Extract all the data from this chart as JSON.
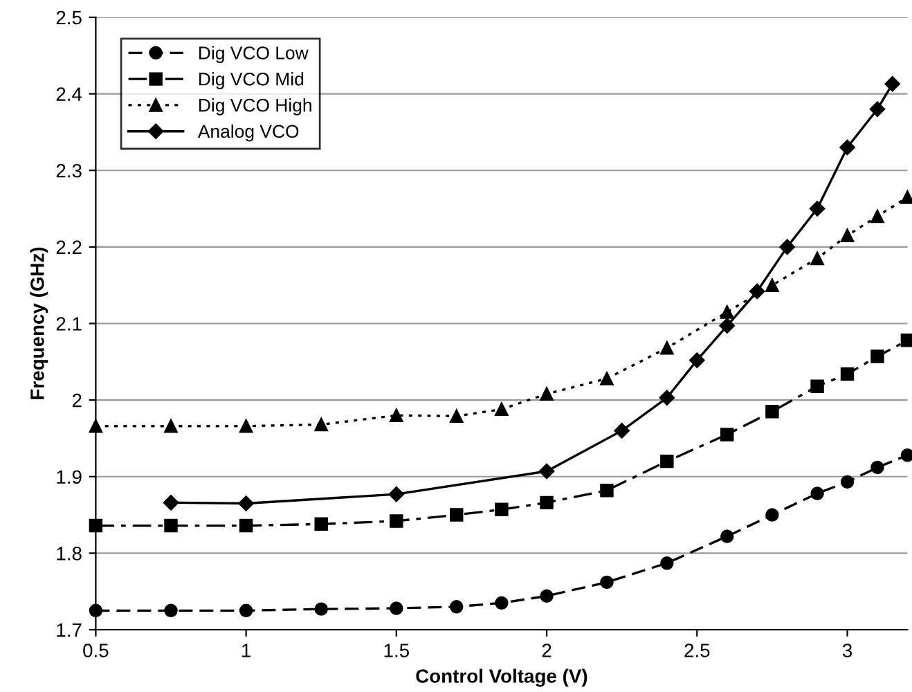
{
  "chart_data": {
    "type": "line",
    "xlabel": "Control Voltage (V)",
    "ylabel": "Frequency (GHz)",
    "xlim": [
      0.5,
      3.2
    ],
    "xticks": [
      0.5,
      1,
      1.5,
      2,
      2.5,
      3
    ],
    "ylim": [
      1.7,
      2.5
    ],
    "yticks": [
      1.7,
      1.8,
      1.9,
      2,
      2.1,
      2.2,
      2.3,
      2.4,
      2.5
    ],
    "grid": "y",
    "legend": "top left",
    "series": [
      {
        "name": "Dig VCO Low",
        "color": "#000000",
        "marker": "circle",
        "line_style": "dashed",
        "x": [
          0.5,
          0.75,
          1,
          1.25,
          1.5,
          1.7,
          1.85,
          2,
          2.2,
          2.4,
          2.6,
          2.75,
          2.9,
          3,
          3.1,
          3.2
        ],
        "values": [
          1.725,
          1.725,
          1.725,
          1.727,
          1.728,
          1.73,
          1.735,
          1.744,
          1.762,
          1.787,
          1.822,
          1.85,
          1.878,
          1.893,
          1.912,
          1.928
        ]
      },
      {
        "name": "Dig VCO Mid",
        "color": "#000000",
        "marker": "square",
        "line_style": "dashdot",
        "x": [
          0.5,
          0.75,
          1,
          1.25,
          1.5,
          1.7,
          1.85,
          2,
          2.2,
          2.4,
          2.6,
          2.75,
          2.9,
          3,
          3.1,
          3.2
        ],
        "values": [
          1.836,
          1.836,
          1.836,
          1.838,
          1.842,
          1.85,
          1.857,
          1.866,
          1.882,
          1.92,
          1.955,
          1.985,
          2.018,
          2.034,
          2.057,
          2.078
        ]
      },
      {
        "name": "Dig VCO High",
        "color": "#000000",
        "marker": "triangle",
        "line_style": "dotted",
        "x": [
          0.5,
          0.75,
          1,
          1.25,
          1.5,
          1.7,
          1.85,
          2,
          2.2,
          2.4,
          2.6,
          2.75,
          2.9,
          3,
          3.1,
          3.2
        ],
        "values": [
          1.966,
          1.966,
          1.966,
          1.968,
          1.98,
          1.979,
          1.988,
          2.008,
          2.028,
          2.068,
          2.115,
          2.15,
          2.185,
          2.215,
          2.24,
          2.265
        ]
      },
      {
        "name": "Analog VCO",
        "color": "#000000",
        "marker": "diamond",
        "line_style": "solid",
        "x": [
          0.75,
          1,
          1.5,
          2,
          2.25,
          2.4,
          2.5,
          2.6,
          2.7,
          2.8,
          2.9,
          3,
          3.1,
          3.15
        ],
        "values": [
          1.866,
          1.865,
          1.877,
          1.907,
          1.96,
          2.003,
          2.052,
          2.097,
          2.142,
          2.2,
          2.25,
          2.33,
          2.38,
          2.413
        ]
      }
    ]
  }
}
